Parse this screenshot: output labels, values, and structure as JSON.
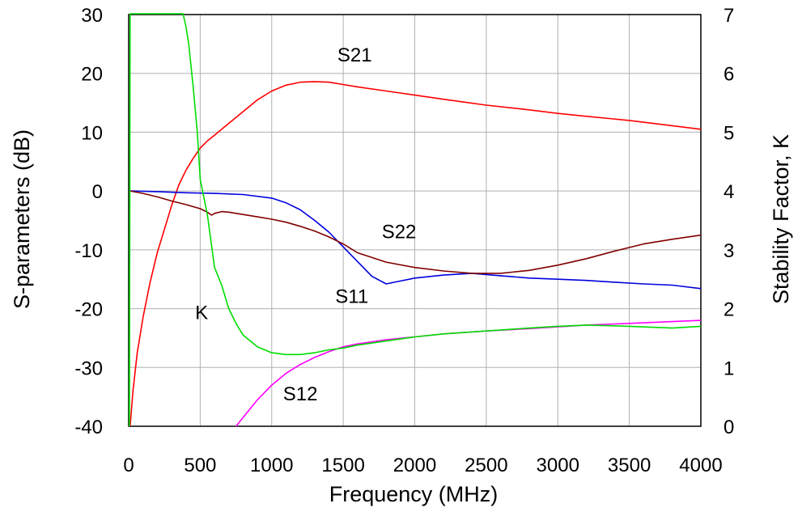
{
  "chart_data": {
    "type": "line",
    "xlabel": "Frequency (MHz)",
    "ylabel_left": "S-parameters (dB)",
    "ylabel_right": "Stability Factor, K",
    "xlim": [
      0,
      4000
    ],
    "ylim_left": [
      -40,
      30
    ],
    "ylim_right": [
      0,
      7
    ],
    "grid": true,
    "x_ticks": [
      0,
      500,
      1000,
      1500,
      2000,
      2500,
      3000,
      3500,
      4000
    ],
    "y_ticks_left": [
      -40,
      -30,
      -20,
      -10,
      0,
      10,
      20,
      30
    ],
    "y_ticks_right": [
      0,
      1,
      2,
      3,
      4,
      5,
      6,
      7
    ],
    "series": [
      {
        "name": "S21",
        "axis": "left",
        "color": "#ff0000",
        "x": [
          10,
          30,
          60,
          100,
          150,
          200,
          250,
          300,
          350,
          400,
          450,
          500,
          550,
          600,
          700,
          800,
          900,
          1000,
          1100,
          1200,
          1300,
          1400,
          1500,
          1600,
          1800,
          2000,
          2200,
          2500,
          2800,
          3000,
          3200,
          3500,
          3800,
          4000
        ],
        "y": [
          -40,
          -34,
          -27.5,
          -21.5,
          -15.5,
          -10.5,
          -6.5,
          -2.5,
          1,
          3.5,
          5.5,
          7.3,
          8.5,
          9.5,
          11.5,
          13.5,
          15.5,
          17,
          18,
          18.5,
          18.6,
          18.5,
          18.1,
          17.7,
          17,
          16.3,
          15.6,
          14.6,
          13.8,
          13.2,
          12.7,
          12,
          11.1,
          10.5
        ]
      },
      {
        "name": "S11",
        "axis": "left",
        "color": "#0000dd",
        "x": [
          10,
          200,
          400,
          600,
          800,
          1000,
          1100,
          1200,
          1300,
          1400,
          1500,
          1600,
          1700,
          1800,
          1900,
          2000,
          2200,
          2400,
          2600,
          2800,
          3000,
          3200,
          3400,
          3600,
          3800,
          4000
        ],
        "y": [
          0,
          -0.1,
          -0.3,
          -0.4,
          -0.6,
          -1.2,
          -2,
          -3.2,
          -5,
          -7,
          -9.5,
          -12,
          -14.5,
          -15.8,
          -15.3,
          -14.8,
          -14.3,
          -14,
          -14.4,
          -14.8,
          -15,
          -15.2,
          -15.5,
          -15.8,
          -16,
          -16.6
        ]
      },
      {
        "name": "S22",
        "axis": "left",
        "color": "#800000",
        "x": [
          10,
          100,
          200,
          300,
          400,
          500,
          550,
          580,
          600,
          650,
          700,
          800,
          900,
          1000,
          1100,
          1200,
          1300,
          1400,
          1500,
          1600,
          1800,
          2000,
          2200,
          2400,
          2500,
          2600,
          2800,
          3000,
          3200,
          3400,
          3600,
          3800,
          4000
        ],
        "y": [
          0,
          -0.4,
          -1,
          -1.7,
          -2.3,
          -3,
          -3.6,
          -4.1,
          -3.8,
          -3.5,
          -3.6,
          -4,
          -4.4,
          -4.8,
          -5.3,
          -6,
          -6.8,
          -7.8,
          -9,
          -10.5,
          -12.1,
          -13,
          -13.6,
          -14,
          -14,
          -14,
          -13.5,
          -12.6,
          -11.5,
          -10.2,
          -9,
          -8.2,
          -7.5
        ]
      },
      {
        "name": "S12",
        "axis": "left",
        "color": "#ff00ff",
        "x": [
          750,
          800,
          900,
          1000,
          1100,
          1200,
          1300,
          1400,
          1500,
          1600,
          1800,
          2000,
          2200,
          2500,
          2800,
          3000,
          3200,
          3500,
          3800,
          4000
        ],
        "y": [
          -40,
          -38.5,
          -35.5,
          -33,
          -31,
          -29.5,
          -28.3,
          -27.3,
          -26.5,
          -26,
          -25.3,
          -24.8,
          -24.3,
          -23.8,
          -23.4,
          -23.1,
          -22.8,
          -22.5,
          -22.2,
          -22
        ]
      },
      {
        "name": "K",
        "axis": "right",
        "color": "#00dd00",
        "x": [
          5,
          10,
          20,
          50,
          100,
          150,
          200,
          250,
          300,
          350,
          380,
          400,
          420,
          450,
          480,
          500,
          550,
          600,
          650,
          700,
          750,
          800,
          900,
          1000,
          1100,
          1200,
          1300,
          1400,
          1500,
          1600,
          1800,
          2000,
          2200,
          2500,
          2800,
          3000,
          3200,
          3500,
          3800,
          4000
        ],
        "y": [
          0,
          7.3,
          7.3,
          7.3,
          7.3,
          7.3,
          7.3,
          7.3,
          7.3,
          7.3,
          7.3,
          6.8,
          6.5,
          5.8,
          5.0,
          4.2,
          3.6,
          2.7,
          2.4,
          2.0,
          1.75,
          1.55,
          1.35,
          1.25,
          1.22,
          1.22,
          1.25,
          1.3,
          1.33,
          1.38,
          1.45,
          1.52,
          1.57,
          1.62,
          1.67,
          1.7,
          1.72,
          1.7,
          1.67,
          1.7
        ]
      }
    ],
    "annotations": [
      {
        "text": "S21",
        "x": 1580,
        "y": 22
      },
      {
        "text": "S22",
        "x": 1890,
        "y": -8
      },
      {
        "text": "S11",
        "x": 1560,
        "y": -19
      },
      {
        "text": "K",
        "x": 510,
        "y": -21.8
      },
      {
        "text": "S12",
        "x": 1200,
        "y": -35.6
      }
    ]
  }
}
